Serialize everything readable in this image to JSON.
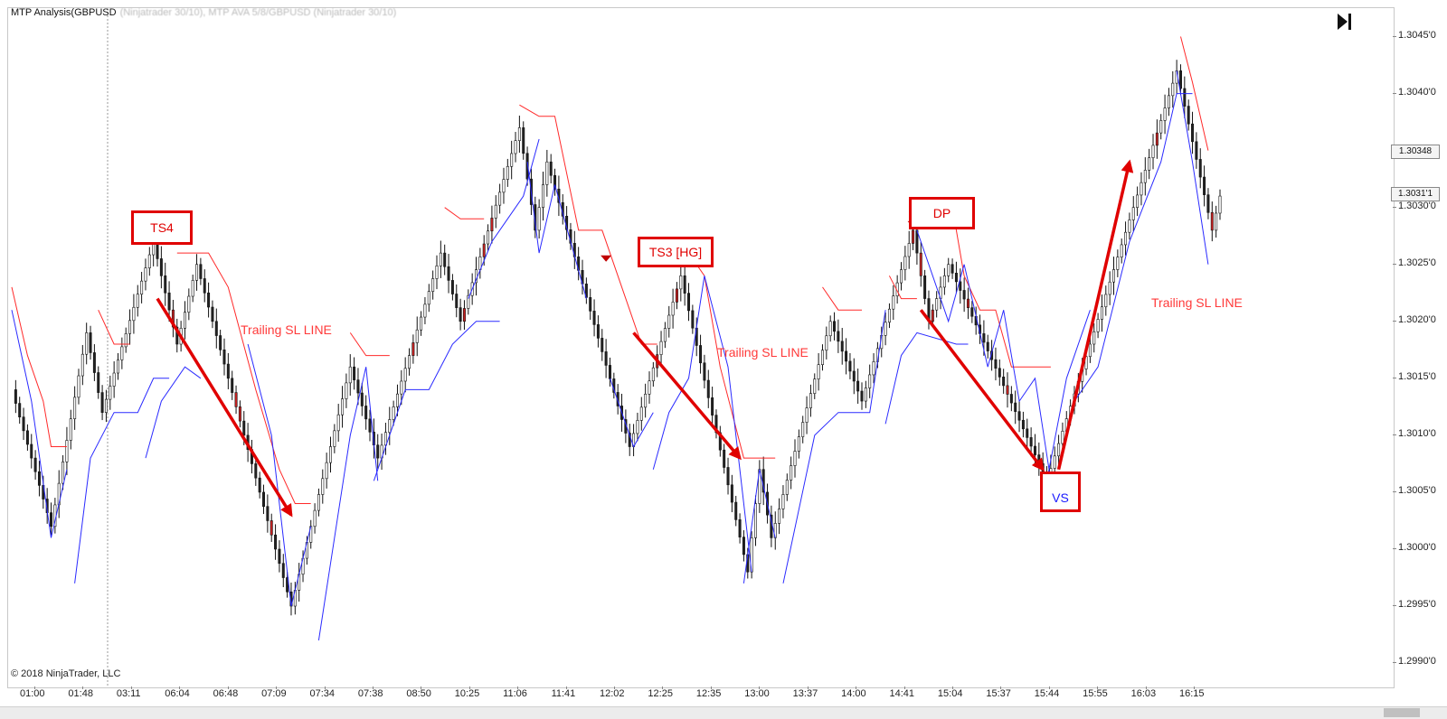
{
  "window": {
    "title": "MTP Analysis(GBPUSD",
    "title_obscured": "(Ninjatrader 30/10), MTP AVA 5/8/GBPUSD (Ninjatrader 30/10)",
    "copyright": "© 2018 NinjaTrader, LLC"
  },
  "current_price_tags": [
    {
      "label": "1.30348",
      "value": 1.30348
    },
    {
      "label": "1.3031'1",
      "value": 1.30311
    }
  ],
  "annotations": {
    "ts4": {
      "label": "TS4"
    },
    "ts3": {
      "label": "TS3 [HG]"
    },
    "dp": {
      "label": "DP"
    },
    "vs": {
      "label": "VS"
    },
    "trailing_1": {
      "label": "Trailing SL LINE"
    },
    "trailing_2": {
      "label": "Trailing SL LINE"
    },
    "trailing_3": {
      "label": "Trailing SL LINE"
    }
  },
  "colors": {
    "bull_bar": "#ffffff",
    "bear_bar": "#222222",
    "resistance_line": "#ff2a2a",
    "support_line": "#2a2aff",
    "arrow": "#e00000"
  },
  "chart_data": {
    "type": "line",
    "title": "MTP Analysis(GBPUSD",
    "xlabel": "",
    "ylabel": "",
    "ylim": [
      1.29885,
      1.30475
    ],
    "x_ticks": [
      "01:00",
      "01:48",
      "03:11",
      "06:04",
      "06:48",
      "07:09",
      "07:34",
      "07:38",
      "08:50",
      "10:25",
      "11:06",
      "11:41",
      "12:02",
      "12:25",
      "12:35",
      "13:00",
      "13:37",
      "14:00",
      "14:41",
      "15:04",
      "15:37",
      "15:44",
      "15:55",
      "16:03",
      "16:15"
    ],
    "y_ticks": [
      {
        "label": "1.2990'0",
        "value": 1.299
      },
      {
        "label": "1.2995'0",
        "value": 1.2995
      },
      {
        "label": "1.3000'0",
        "value": 1.3
      },
      {
        "label": "1.3005'0",
        "value": 1.3005
      },
      {
        "label": "1.3010'0",
        "value": 1.301
      },
      {
        "label": "1.3015'0",
        "value": 1.3015
      },
      {
        "label": "1.3020'0",
        "value": 1.302
      },
      {
        "label": "1.3025'0",
        "value": 1.3025
      },
      {
        "label": "1.3030'0",
        "value": 1.303
      },
      {
        "label": "1.3035'0",
        "value": 1.3035
      },
      {
        "label": "1.3040'0",
        "value": 1.304
      },
      {
        "label": "1.3045'0",
        "value": 1.3045
      }
    ],
    "bar_count": 260,
    "price_pivots": [
      [
        0,
        1.3014
      ],
      [
        10,
        1.3002
      ],
      [
        19,
        1.3019
      ],
      [
        23,
        1.3012
      ],
      [
        36,
        1.3027
      ],
      [
        42,
        1.3018
      ],
      [
        47,
        1.3025
      ],
      [
        71,
        1.2995
      ],
      [
        86,
        1.3016
      ],
      [
        93,
        1.3008
      ],
      [
        109,
        1.3026
      ],
      [
        114,
        1.302
      ],
      [
        129,
        1.3037
      ],
      [
        133,
        1.3028
      ],
      [
        136,
        1.3034
      ],
      [
        157,
        1.3009
      ],
      [
        170,
        1.3024
      ],
      [
        187,
        1.2998
      ],
      [
        190,
        1.3007
      ],
      [
        193,
        1.3001
      ],
      [
        208,
        1.302
      ],
      [
        216,
        1.3013
      ],
      [
        229,
        1.3028
      ],
      [
        233,
        1.302
      ],
      [
        238,
        1.3025
      ],
      [
        263,
        1.3006
      ],
      [
        296,
        1.3042
      ],
      [
        305,
        1.3028
      ],
      [
        307,
        1.3031
      ]
    ],
    "series": [
      {
        "name": "",
        "color": "#ff2a2a",
        "segments": [
          [
            [
              0,
              1.3023
            ],
            [
              4,
              1.3017
            ],
            [
              8,
              1.3013
            ],
            [
              10,
              1.3009
            ],
            [
              14,
              1.3009
            ]
          ],
          [
            [
              22,
              1.3021
            ],
            [
              26,
              1.3018
            ],
            [
              30,
              1.3018
            ]
          ],
          [
            [
              42,
              1.3026
            ],
            [
              46,
              1.3026
            ],
            [
              50,
              1.3026
            ],
            [
              55,
              1.3023
            ],
            [
              62,
              1.3014
            ],
            [
              68,
              1.3007
            ],
            [
              72,
              1.3004
            ],
            [
              76,
              1.3004
            ]
          ],
          [
            [
              86,
              1.3019
            ],
            [
              90,
              1.3017
            ],
            [
              96,
              1.3017
            ]
          ],
          [
            [
              110,
              1.303
            ],
            [
              114,
              1.3029
            ],
            [
              120,
              1.3029
            ]
          ],
          [
            [
              129,
              1.3039
            ],
            [
              134,
              1.3038
            ],
            [
              138,
              1.3038
            ],
            [
              144,
              1.3028
            ],
            [
              150,
              1.3028
            ],
            [
              156,
              1.3022
            ],
            [
              160,
              1.3018
            ],
            [
              164,
              1.3018
            ]
          ],
          [
            [
              172,
              1.3026
            ],
            [
              176,
              1.3024
            ],
            [
              180,
              1.3016
            ],
            [
              186,
              1.3008
            ],
            [
              190,
              1.3008
            ],
            [
              194,
              1.3008
            ]
          ],
          [
            [
              206,
              1.3023
            ],
            [
              210,
              1.3021
            ],
            [
              216,
              1.3021
            ]
          ],
          [
            [
              223,
              1.3024
            ],
            [
              226,
              1.3022
            ],
            [
              230,
              1.3022
            ]
          ],
          [
            [
              239,
              1.303
            ],
            [
              242,
              1.3024
            ],
            [
              246,
              1.3021
            ],
            [
              250,
              1.3021
            ],
            [
              254,
              1.3016
            ],
            [
              258,
              1.3016
            ],
            [
              262,
              1.3016
            ],
            [
              264,
              1.3016
            ]
          ],
          [
            [
              297,
              1.3045
            ],
            [
              300,
              1.3041
            ],
            [
              304,
              1.3035
            ]
          ]
        ]
      },
      {
        "name": "",
        "color": "#2a2aff",
        "segments": [
          [
            [
              0,
              1.3021
            ],
            [
              5,
              1.3013
            ],
            [
              10,
              1.3001
            ],
            [
              14,
              1.3007
            ]
          ],
          [
            [
              16,
              1.2997
            ],
            [
              20,
              1.3008
            ],
            [
              26,
              1.3012
            ],
            [
              32,
              1.3012
            ],
            [
              36,
              1.3015
            ],
            [
              40,
              1.3015
            ]
          ],
          [
            [
              34,
              1.3008
            ],
            [
              38,
              1.3013
            ],
            [
              44,
              1.3016
            ],
            [
              48,
              1.3015
            ]
          ],
          [
            [
              60,
              1.3018
            ],
            [
              66,
              1.301
            ],
            [
              71,
              1.2995
            ],
            [
              76,
              1.3002
            ]
          ],
          [
            [
              78,
              1.2992
            ],
            [
              86,
              1.301
            ],
            [
              90,
              1.3016
            ],
            [
              93,
              1.3006
            ]
          ],
          [
            [
              92,
              1.3006
            ],
            [
              100,
              1.3014
            ],
            [
              106,
              1.3014
            ],
            [
              112,
              1.3018
            ],
            [
              118,
              1.302
            ],
            [
              124,
              1.302
            ]
          ],
          [
            [
              116,
              1.3022
            ],
            [
              122,
              1.3027
            ],
            [
              126,
              1.3029
            ],
            [
              130,
              1.3031
            ],
            [
              134,
              1.3036
            ]
          ],
          [
            [
              131,
              1.3034
            ],
            [
              134,
              1.3026
            ],
            [
              138,
              1.3032
            ],
            [
              146,
              1.3022
            ]
          ],
          [
            [
              152,
              1.3015
            ],
            [
              158,
              1.3009
            ],
            [
              163,
              1.3012
            ]
          ],
          [
            [
              163,
              1.3007
            ],
            [
              167,
              1.3012
            ],
            [
              172,
              1.3015
            ],
            [
              176,
              1.3024
            ],
            [
              182,
              1.3016
            ],
            [
              188,
              1.2998
            ]
          ],
          [
            [
              186,
              1.2997
            ],
            [
              190,
              1.3007
            ],
            [
              194,
              1.3001
            ]
          ],
          [
            [
              196,
              1.2997
            ],
            [
              204,
              1.301
            ],
            [
              210,
              1.3012
            ],
            [
              218,
              1.3012
            ],
            [
              222,
              1.3021
            ]
          ],
          [
            [
              222,
              1.3011
            ],
            [
              226,
              1.3017
            ],
            [
              230,
              1.3019
            ],
            [
              240,
              1.3018
            ],
            [
              243,
              1.3018
            ]
          ],
          [
            [
              230,
              1.3028
            ],
            [
              238,
              1.302
            ],
            [
              242,
              1.3025
            ],
            [
              248,
              1.3016
            ],
            [
              252,
              1.3021
            ],
            [
              256,
              1.3013
            ],
            [
              260,
              1.3015
            ],
            [
              264,
              1.3006
            ]
          ],
          [
            [
              263,
              1.3006
            ],
            [
              268,
              1.3015
            ],
            [
              274,
              1.3021
            ]
          ],
          [
            [
              270,
              1.3013
            ],
            [
              276,
              1.3016
            ],
            [
              284,
              1.3027
            ],
            [
              292,
              1.3034
            ],
            [
              296,
              1.304
            ],
            [
              300,
              1.304
            ]
          ],
          [
            [
              296,
              1.3042
            ],
            [
              300,
              1.3034
            ],
            [
              304,
              1.3025
            ]
          ]
        ]
      }
    ],
    "arrows": [
      {
        "from": [
          37,
          1.3022
        ],
        "to": [
          71,
          1.3003
        ]
      },
      {
        "from": [
          158,
          1.3019
        ],
        "to": [
          185,
          1.3008
        ]
      },
      {
        "from": [
          231,
          1.3021
        ],
        "to": [
          262,
          1.3007
        ]
      },
      {
        "from": [
          266,
          1.3007
        ],
        "to": [
          284,
          1.3034
        ]
      }
    ],
    "markers": [
      {
        "label": "TS4",
        "kind": "top",
        "x": 36,
        "y": 1.3027
      },
      {
        "label": "TS3 [HG]",
        "kind": "top",
        "x": 151,
        "y": 1.3025
      },
      {
        "label": "DP",
        "kind": "top",
        "x": 229,
        "y": 1.3028
      },
      {
        "label": "VS",
        "kind": "bottom",
        "x": 263,
        "y": 1.3006
      }
    ]
  }
}
